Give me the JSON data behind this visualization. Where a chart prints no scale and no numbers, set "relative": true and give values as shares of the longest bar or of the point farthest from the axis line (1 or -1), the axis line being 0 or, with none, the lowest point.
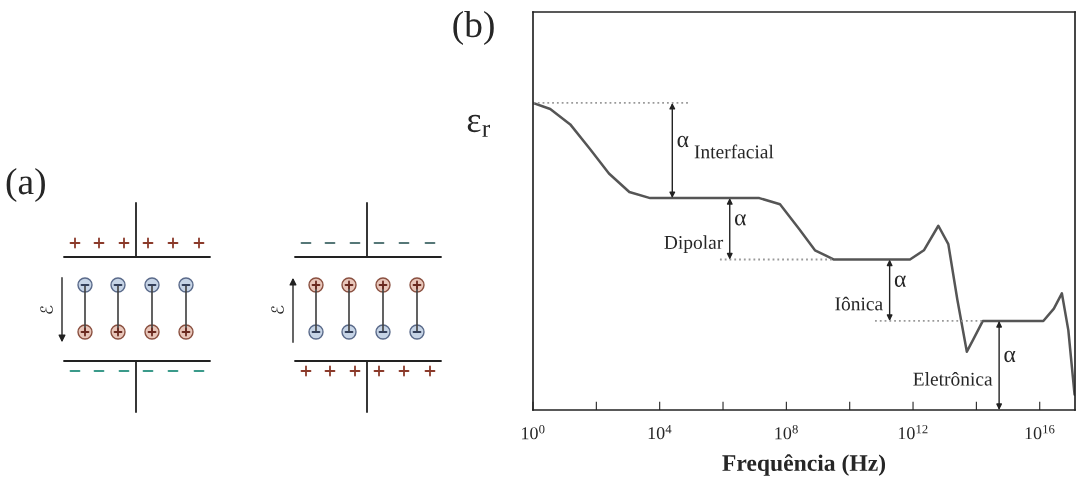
{
  "chart_data": [
    {
      "type": "other",
      "annotations": [
        "(a)",
        "ℰ",
        "ℰ"
      ]
    },
    {
      "type": "line",
      "title": "(b)",
      "xlabel": "Frequência (Hz)",
      "ylabel": "ε$_{r}$",
      "relative": true,
      "log": "x",
      "xlim": [
        1,
        1.3e+17
      ],
      "xticks": [
        {
          "value": 1,
          "label": "10$^{0}$"
        },
        {
          "value": 100,
          "label": null
        },
        {
          "value": 10000.0,
          "label": "10$^{4}$"
        },
        {
          "value": 1000000.0,
          "label": null
        },
        {
          "value": 100000000.0,
          "label": "10$^{8}$"
        },
        {
          "value": 10000000000.0,
          "label": null
        },
        {
          "value": 1000000000000.0,
          "label": "10$^{12}$"
        },
        {
          "value": 100000000000000.0,
          "label": null
        },
        {
          "value": 1e+16,
          "label": "10$^{16}$"
        }
      ],
      "series": [
        {
          "type": "line",
          "color": "#555555",
          "line_style": "solid",
          "x": [
            1,
            3.5,
            15,
            63,
            250,
            1100.0,
            5000.0,
            14000000.0,
            63000000.0,
            250000000.0,
            800000000.0,
            3200000000.0,
            800000000000.0,
            2200000000000.0,
            6300000000000.0,
            13000000000000.0,
            25000000000000.0,
            50000000000000.0,
            80000000000000.0,
            160000000000000.0,
            1.3e+16,
            2.8e+16,
            5e+16,
            8e+16,
            1.26e+17
          ],
          "values": [
            1.0,
            0.98,
            0.93,
            0.85,
            0.77,
            0.71,
            0.69,
            0.69,
            0.67,
            0.59,
            0.52,
            0.49,
            0.49,
            0.52,
            0.6,
            0.54,
            0.36,
            0.19,
            0.23,
            0.29,
            0.29,
            0.33,
            0.38,
            0.26,
            0.05
          ]
        },
        {
          "type": "line",
          "color": "#999999",
          "line_style": "dotted",
          "x": [
            1,
            87000.0
          ],
          "values": [
            1.0,
            1.0
          ]
        },
        {
          "type": "line",
          "color": "#999999",
          "line_style": "dotted",
          "x": [
            800000.0,
            3200000000.0
          ],
          "values": [
            0.49,
            0.49
          ]
        },
        {
          "type": "line",
          "color": "#999999",
          "line_style": "dotted",
          "x": [
            63000000000.0,
            160000000000000.0
          ],
          "values": [
            0.29,
            0.29
          ]
        }
      ],
      "annotations": [
        "α",
        "Interfacial",
        "α",
        "Dipolar",
        "α",
        "Iônica",
        "α",
        "Eletrônica"
      ]
    }
  ]
}
